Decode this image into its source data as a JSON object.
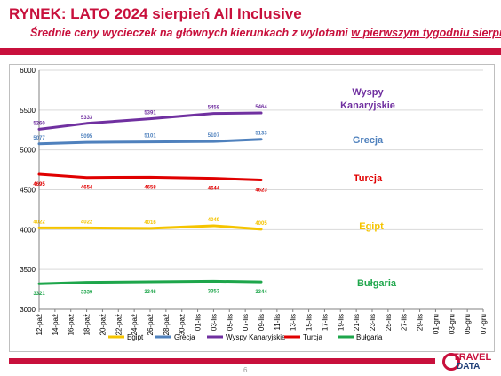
{
  "header": {
    "title": "RYNEK: LATO 2024 sierpień All Inclusive",
    "subtitle_plain": "Średnie ceny wycieczek na głównych kierunkach z wylotami ",
    "subtitle_underlined": "w pierwszym tygodniu sierpnia"
  },
  "footer": {
    "page_number": "6",
    "logo_line1": "TRAVEL",
    "logo_line2": "DATA"
  },
  "colors": {
    "brand": "#c8103c",
    "egipt": "#f5c400",
    "grecja": "#4f81bd",
    "wyspy": "#7030a0",
    "turcja": "#e00000",
    "bulgaria": "#1ea64b"
  },
  "chart_data": {
    "type": "line",
    "title": "",
    "xlabel": "",
    "ylabel": "",
    "ylim": [
      3000,
      6000
    ],
    "yticks": [
      3000,
      3500,
      4000,
      4500,
      5000,
      5500,
      6000
    ],
    "grid": true,
    "legend": "bottom",
    "categories": [
      "12-paź",
      "14-paź",
      "16-paź",
      "18-paź",
      "20-paź",
      "22-paź",
      "24-paź",
      "26-paź",
      "28-paź",
      "30-paź",
      "01-lis",
      "03-lis",
      "05-lis",
      "07-lis",
      "09-lis",
      "11-lis",
      "13-lis",
      "15-lis",
      "17-lis",
      "19-lis",
      "21-lis",
      "23-lis",
      "25-lis",
      "27-lis",
      "29-lis",
      "01-gru",
      "03-gru",
      "05-gru",
      "07-gru"
    ],
    "series": [
      {
        "name": "Egipt",
        "color": "#f5c400",
        "label": "Egipt",
        "points": [
          [
            0,
            4022
          ],
          [
            3,
            4022
          ],
          [
            7,
            4016
          ],
          [
            11,
            4049
          ],
          [
            14,
            4005
          ]
        ]
      },
      {
        "name": "Grecja",
        "color": "#4f81bd",
        "label": "Grecja",
        "points": [
          [
            0,
            5077
          ],
          [
            3,
            5095
          ],
          [
            7,
            5101
          ],
          [
            11,
            5107
          ],
          [
            14,
            5133
          ]
        ]
      },
      {
        "name": "Wyspy Kanaryjskie",
        "color": "#7030a0",
        "label": "Wyspy Kanaryjskie",
        "points": [
          [
            0,
            5260
          ],
          [
            3,
            5333
          ],
          [
            7,
            5391
          ],
          [
            11,
            5458
          ],
          [
            14,
            5464
          ]
        ]
      },
      {
        "name": "Turcja",
        "color": "#e00000",
        "label": "Turcja",
        "points": [
          [
            0,
            4695
          ],
          [
            3,
            4654
          ],
          [
            7,
            4658
          ],
          [
            11,
            4644
          ],
          [
            14,
            4623
          ]
        ]
      },
      {
        "name": "Bułgaria",
        "color": "#1ea64b",
        "label": "Bułgaria",
        "points": [
          [
            0,
            3321
          ],
          [
            3,
            3339
          ],
          [
            7,
            3346
          ],
          [
            11,
            3353
          ],
          [
            14,
            3344
          ]
        ]
      }
    ]
  }
}
